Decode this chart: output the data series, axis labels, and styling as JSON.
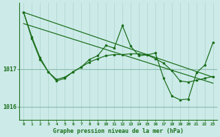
{
  "background_color": "#cceae8",
  "grid_color_v": "#aad4cc",
  "grid_color_h": "#88bbaa",
  "line_color": "#1a6e1a",
  "xlabel": "Graphe pression niveau de la mer (hPa)",
  "xlim": [
    -0.5,
    23.5
  ],
  "ylim": [
    1015.65,
    1018.75
  ],
  "yticks": [
    1016,
    1017
  ],
  "x_ticks": [
    0,
    1,
    2,
    3,
    4,
    5,
    6,
    7,
    8,
    9,
    10,
    11,
    12,
    13,
    14,
    15,
    16,
    17,
    18,
    19,
    20,
    21,
    22,
    23
  ],
  "trend1_x": [
    0,
    23
  ],
  "trend1_y": [
    1018.5,
    1016.78
  ],
  "trend2_x": [
    0,
    23
  ],
  "trend2_y": [
    1018.2,
    1016.62
  ],
  "zigzag1_x": [
    0,
    1,
    2,
    3,
    4,
    5,
    6,
    7,
    8,
    9,
    10,
    11,
    12,
    13,
    14,
    15,
    16,
    17,
    18,
    19,
    20,
    21,
    22,
    23
  ],
  "zigzag1_y": [
    1018.5,
    1017.85,
    1017.3,
    1016.92,
    1016.72,
    1016.78,
    1016.92,
    1017.05,
    1017.18,
    1017.27,
    1017.35,
    1017.38,
    1017.38,
    1017.4,
    1017.4,
    1017.37,
    1017.27,
    1017.15,
    1016.95,
    1016.68,
    1016.65,
    1016.7,
    1016.75,
    1016.8
  ],
  "zigzag2_x": [
    0,
    1,
    2,
    3,
    4,
    5,
    6,
    7,
    8,
    9,
    10,
    11,
    12,
    13,
    14,
    15,
    16,
    17,
    18,
    19,
    20,
    21,
    22,
    23
  ],
  "zigzag2_y": [
    1018.5,
    1017.8,
    1017.25,
    1016.92,
    1016.68,
    1016.75,
    1016.92,
    1017.05,
    1017.25,
    1017.35,
    1017.62,
    1017.55,
    1018.15,
    1017.6,
    1017.35,
    1017.37,
    1017.42,
    1016.75,
    1016.28,
    1016.18,
    1016.2,
    1016.9,
    1017.1,
    1017.7
  ]
}
